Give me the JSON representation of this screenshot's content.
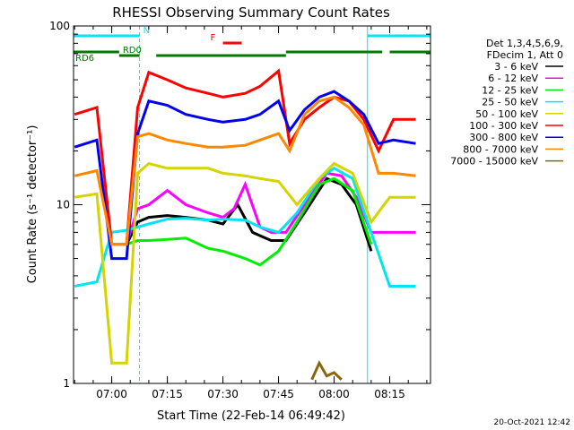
{
  "chart_data": {
    "type": "line",
    "title": "RHESSI Observing Summary Count Rates",
    "xlabel": "Start Time (22-Feb-14 06:49:42)",
    "ylabel": "Count Rate (s⁻¹ detector⁻¹)",
    "y_scale": "log",
    "ylim": [
      1,
      100
    ],
    "xlim": [
      "06:49:42",
      "08:26:00"
    ],
    "x_ticks": [
      "07:00",
      "07:15",
      "07:30",
      "07:45",
      "08:00",
      "08:15"
    ],
    "y_ticks": [
      "1",
      "10",
      "100"
    ],
    "grid": false,
    "legend_position": "right",
    "legend_header": [
      "Det 1,3,4,5,6,9,",
      "FDecim 1, Att 0"
    ],
    "timestamp": "20-Oct-2021 12:42",
    "flags": [
      {
        "label": "N",
        "color": "#00e5ee",
        "segments": [
          [
            "06:49:42",
            "07:07:30"
          ],
          [
            "08:09:00",
            "08:26:00"
          ]
        ]
      },
      {
        "label": "RD0",
        "color": "#007a00",
        "segments": [
          [
            "07:02:00",
            "07:07:30"
          ],
          [
            "07:12:00",
            "07:47:00"
          ]
        ]
      },
      {
        "label": "RD6",
        "color": "#007a00",
        "segments": [
          [
            "06:49:42",
            "07:02:00"
          ],
          [
            "07:47:00",
            "08:13:00"
          ],
          [
            "08:15:00",
            "08:26:00"
          ]
        ]
      },
      {
        "label": "F",
        "color": "#ff0000",
        "segments": [
          [
            "07:30:00",
            "07:35:00"
          ]
        ]
      }
    ],
    "series": [
      {
        "name": "3 - 6 keV",
        "color": "#000000",
        "x": [
          "07:04",
          "07:07",
          "07:10",
          "07:15",
          "07:20",
          "07:26",
          "07:30",
          "07:34",
          "07:38",
          "07:43",
          "07:47",
          "07:52",
          "07:58",
          "08:02",
          "08:06",
          "08:10"
        ],
        "values": [
          6,
          8,
          8.5,
          8.7,
          8.5,
          8.2,
          7.8,
          10,
          7,
          6.3,
          6.3,
          9,
          14,
          13,
          10,
          5.5
        ]
      },
      {
        "name": "6 - 12 keV",
        "color": "#ff00ff",
        "x": [
          "07:04",
          "07:07",
          "07:10",
          "07:15",
          "07:20",
          "07:26",
          "07:30",
          "07:33",
          "07:36",
          "07:40",
          "07:43",
          "07:47",
          "07:52",
          "07:58",
          "08:02",
          "08:06",
          "08:10",
          "08:16",
          "08:22"
        ],
        "values": [
          6,
          9.5,
          10,
          12,
          10,
          9,
          8.5,
          9.5,
          13,
          7.5,
          7,
          7,
          10,
          15,
          14.5,
          11,
          7,
          7,
          7
        ]
      },
      {
        "name": "12 - 25 keV",
        "color": "#00ee00",
        "x": [
          "07:04",
          "07:07",
          "07:10",
          "07:15",
          "07:20",
          "07:26",
          "07:30",
          "07:36",
          "07:40",
          "07:45",
          "07:50",
          "07:56",
          "08:00",
          "08:05",
          "08:10"
        ],
        "values": [
          6,
          6.3,
          6.3,
          6.4,
          6.5,
          5.7,
          5.5,
          5,
          4.6,
          5.5,
          8,
          13,
          14,
          12,
          6
        ]
      },
      {
        "name": "25 - 50 keV",
        "color": "#00e5ee",
        "x": [
          "06:50",
          "06:56",
          "07:00",
          "07:04",
          "07:07",
          "07:10",
          "07:15",
          "07:20",
          "07:26",
          "07:30",
          "07:36",
          "07:40",
          "07:45",
          "07:50",
          "07:56",
          "08:00",
          "08:05",
          "08:10",
          "08:15",
          "08:22"
        ],
        "values": [
          3.5,
          3.7,
          7,
          7.2,
          7.5,
          7.8,
          8.3,
          8.4,
          8.2,
          8.3,
          8.2,
          7.5,
          7,
          9,
          14,
          16,
          14,
          7,
          3.5,
          3.5
        ]
      },
      {
        "name": "50 - 100 keV",
        "color": "#d4d400",
        "x": [
          "06:50",
          "06:56",
          "07:00",
          "07:04",
          "07:07",
          "07:10",
          "07:15",
          "07:20",
          "07:26",
          "07:30",
          "07:36",
          "07:40",
          "07:45",
          "07:50",
          "07:56",
          "08:00",
          "08:05",
          "08:10",
          "08:15",
          "08:22"
        ],
        "values": [
          11,
          11.5,
          1.3,
          1.3,
          15,
          17,
          16,
          16,
          16,
          15,
          14.5,
          14,
          13.5,
          10,
          14,
          17,
          15,
          8,
          11,
          11
        ]
      },
      {
        "name": "100 - 300 keV",
        "color": "#ff0000",
        "x": [
          "06:50",
          "06:56",
          "07:00",
          "07:04",
          "07:07",
          "07:10",
          "07:15",
          "07:20",
          "07:26",
          "07:30",
          "07:36",
          "07:40",
          "07:45",
          "07:48",
          "07:52",
          "07:56",
          "08:00",
          "08:04",
          "08:08",
          "08:12",
          "08:16",
          "08:22"
        ],
        "values": [
          32,
          35,
          6,
          6,
          35,
          55,
          50,
          45,
          42,
          40,
          42,
          46,
          56,
          22,
          30,
          35,
          40,
          38,
          30,
          20,
          30,
          30
        ]
      },
      {
        "name": "300 - 800 keV",
        "color": "#0000ee",
        "x": [
          "06:50",
          "06:56",
          "07:00",
          "07:04",
          "07:07",
          "07:10",
          "07:15",
          "07:20",
          "07:26",
          "07:30",
          "07:36",
          "07:40",
          "07:45",
          "07:48",
          "07:52",
          "07:56",
          "08:00",
          "08:04",
          "08:08",
          "08:12",
          "08:16",
          "08:22"
        ],
        "values": [
          21,
          23,
          5,
          5,
          25,
          38,
          36,
          32,
          30,
          29,
          30,
          32,
          38,
          26,
          34,
          40,
          43,
          38,
          32,
          22,
          23,
          22
        ]
      },
      {
        "name": "800 - 7000 keV",
        "color": "#ff8800",
        "x": [
          "06:50",
          "06:56",
          "07:00",
          "07:04",
          "07:07",
          "07:10",
          "07:15",
          "07:20",
          "07:26",
          "07:30",
          "07:36",
          "07:40",
          "07:45",
          "07:48",
          "07:52",
          "07:56",
          "08:00",
          "08:04",
          "08:08",
          "08:12",
          "08:16",
          "08:22"
        ],
        "values": [
          14.5,
          15.5,
          6,
          6,
          24,
          25,
          23,
          22,
          21,
          21,
          21.5,
          23,
          25,
          20,
          32,
          38,
          40,
          35,
          28,
          15,
          15,
          14.5
        ]
      },
      {
        "name": "7000 - 15000 keV",
        "color": "#8b6508",
        "x": [
          "07:54",
          "07:56",
          "07:58",
          "08:00",
          "08:02"
        ],
        "values": [
          1.05,
          1.3,
          1.1,
          1.15,
          1.05
        ]
      }
    ]
  }
}
